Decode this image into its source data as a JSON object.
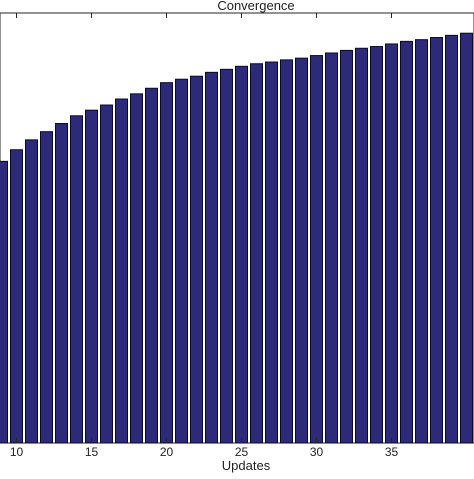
{
  "chart_data": {
    "type": "bar",
    "title": "Convergence",
    "xlabel": "Updates",
    "ylabel": "",
    "x_ticks": [
      "10",
      "15",
      "20",
      "25",
      "30",
      "35"
    ],
    "x_tick_values": [
      10,
      15,
      20,
      25,
      30,
      35
    ],
    "xlim": [
      8.9,
      40.5
    ],
    "ylim": [
      0,
      1
    ],
    "grid": false,
    "bar_color": "#2e2a7a",
    "bar_edge_color": "#0a0a2a",
    "x": [
      9,
      10,
      11,
      12,
      13,
      14,
      15,
      16,
      17,
      18,
      19,
      20,
      21,
      22,
      23,
      24,
      25,
      26,
      27,
      28,
      29,
      30,
      31,
      32,
      33,
      34,
      35,
      36,
      37,
      38,
      39,
      40
    ],
    "values": [
      0.655,
      0.682,
      0.705,
      0.724,
      0.743,
      0.761,
      0.774,
      0.786,
      0.8,
      0.812,
      0.825,
      0.838,
      0.846,
      0.853,
      0.862,
      0.869,
      0.876,
      0.882,
      0.886,
      0.891,
      0.895,
      0.901,
      0.907,
      0.913,
      0.918,
      0.922,
      0.928,
      0.934,
      0.938,
      0.943,
      0.948,
      0.953
    ]
  }
}
